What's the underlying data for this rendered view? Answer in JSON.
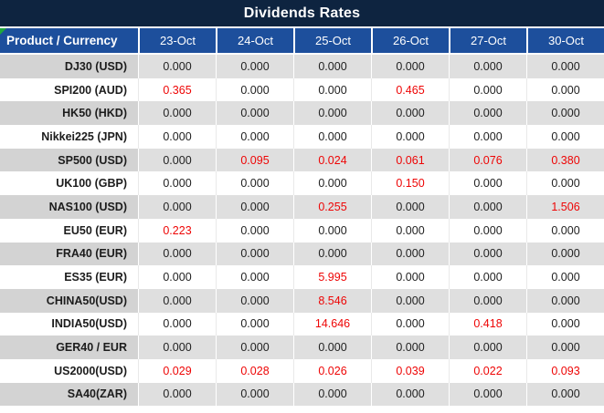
{
  "title_bar": {
    "title": "Dividends Rates"
  },
  "table": {
    "product_header": "Product / Currency",
    "date_headers": [
      "23-Oct",
      "24-Oct",
      "25-Oct",
      "26-Oct",
      "27-Oct",
      "30-Oct"
    ],
    "rows": [
      {
        "product": "DJ30 (USD)",
        "values": [
          "0.000",
          "0.000",
          "0.000",
          "0.000",
          "0.000",
          "0.000"
        ],
        "red": [
          false,
          false,
          false,
          false,
          false,
          false
        ]
      },
      {
        "product": "SPI200 (AUD)",
        "values": [
          "0.365",
          "0.000",
          "0.000",
          "0.465",
          "0.000",
          "0.000"
        ],
        "red": [
          true,
          false,
          false,
          true,
          false,
          false
        ]
      },
      {
        "product": "HK50 (HKD)",
        "values": [
          "0.000",
          "0.000",
          "0.000",
          "0.000",
          "0.000",
          "0.000"
        ],
        "red": [
          false,
          false,
          false,
          false,
          false,
          false
        ]
      },
      {
        "product": "Nikkei225 (JPN)",
        "values": [
          "0.000",
          "0.000",
          "0.000",
          "0.000",
          "0.000",
          "0.000"
        ],
        "red": [
          false,
          false,
          false,
          false,
          false,
          false
        ]
      },
      {
        "product": "SP500 (USD)",
        "values": [
          "0.000",
          "0.095",
          "0.024",
          "0.061",
          "0.076",
          "0.380"
        ],
        "red": [
          false,
          true,
          true,
          true,
          true,
          true
        ]
      },
      {
        "product": "UK100 (GBP)",
        "values": [
          "0.000",
          "0.000",
          "0.000",
          "0.150",
          "0.000",
          "0.000"
        ],
        "red": [
          false,
          false,
          false,
          true,
          false,
          false
        ]
      },
      {
        "product": "NAS100 (USD)",
        "values": [
          "0.000",
          "0.000",
          "0.255",
          "0.000",
          "0.000",
          "1.506"
        ],
        "red": [
          false,
          false,
          true,
          false,
          false,
          true
        ]
      },
      {
        "product": "EU50 (EUR)",
        "values": [
          "0.223",
          "0.000",
          "0.000",
          "0.000",
          "0.000",
          "0.000"
        ],
        "red": [
          true,
          false,
          false,
          false,
          false,
          false
        ]
      },
      {
        "product": "FRA40 (EUR)",
        "values": [
          "0.000",
          "0.000",
          "0.000",
          "0.000",
          "0.000",
          "0.000"
        ],
        "red": [
          false,
          false,
          false,
          false,
          false,
          false
        ]
      },
      {
        "product": "ES35 (EUR)",
        "values": [
          "0.000",
          "0.000",
          "5.995",
          "0.000",
          "0.000",
          "0.000"
        ],
        "red": [
          false,
          false,
          true,
          false,
          false,
          false
        ]
      },
      {
        "product": "CHINA50(USD)",
        "values": [
          "0.000",
          "0.000",
          "8.546",
          "0.000",
          "0.000",
          "0.000"
        ],
        "red": [
          false,
          false,
          true,
          false,
          false,
          false
        ]
      },
      {
        "product": "INDIA50(USD)",
        "values": [
          "0.000",
          "0.000",
          "14.646",
          "0.000",
          "0.418",
          "0.000"
        ],
        "red": [
          false,
          false,
          true,
          false,
          true,
          false
        ]
      },
      {
        "product": "GER40 / EUR",
        "values": [
          "0.000",
          "0.000",
          "0.000",
          "0.000",
          "0.000",
          "0.000"
        ],
        "red": [
          false,
          false,
          false,
          false,
          false,
          false
        ]
      },
      {
        "product": "US2000(USD)",
        "values": [
          "0.029",
          "0.028",
          "0.026",
          "0.039",
          "0.022",
          "0.093"
        ],
        "red": [
          true,
          true,
          true,
          true,
          true,
          true
        ]
      },
      {
        "product": "SA40(ZAR)",
        "values": [
          "0.000",
          "0.000",
          "0.000",
          "0.000",
          "0.000",
          "0.000"
        ],
        "red": [
          false,
          false,
          false,
          false,
          false,
          false
        ]
      }
    ]
  },
  "icons": {
    "cell_error_indicator": "green-corner-triangle"
  },
  "colors": {
    "title_bg": "#0e2440",
    "header_bg": "#1d4f9c",
    "row_gray": "#dfdfdf",
    "row_gray_product": "#d3d3d3",
    "negative_red": "#ee0505",
    "text_dark": "#222222",
    "indicator_green": "#1fa83c"
  }
}
